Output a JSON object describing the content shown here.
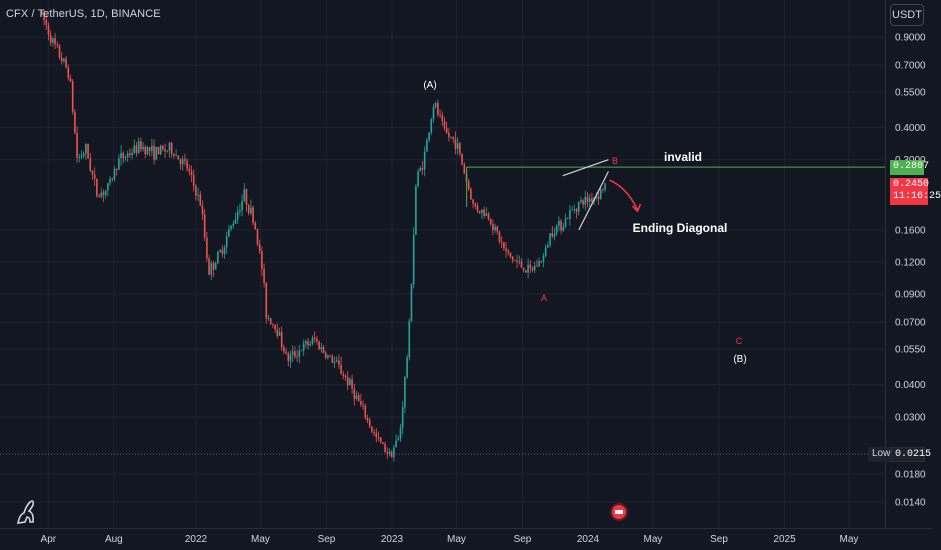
{
  "header": {
    "symbol_line": "CFX / TetherUS, 1D, BINANCE"
  },
  "unit_button_label": "USDT",
  "price_tags": {
    "invalid_level": "0.2807",
    "last_price": "0.2450",
    "countdown": "11:16:25",
    "low_label": "Low",
    "low_value": "0.0215"
  },
  "annotations": {
    "wave_A_top": "(A)",
    "wave_B_small": "B",
    "wave_A_small": "A",
    "wave_C_small": "C",
    "wave_B_target": "(B)",
    "invalid_text": "invalid",
    "ending_diagonal": "Ending Diagonal"
  },
  "colors": {
    "background": "#131722",
    "up": "#26a69a",
    "down": "#ef5350",
    "invalid_line": "#4caf50",
    "wave_red": "#f23645",
    "text": "#d1d4dc"
  },
  "chart_data": {
    "type": "candlestick",
    "scale": "log",
    "y_ticks": [
      0.9,
      0.7,
      0.55,
      0.4,
      0.3,
      0.16,
      0.12,
      0.09,
      0.07,
      0.055,
      0.04,
      0.03,
      0.018,
      0.014
    ],
    "y_tick_labels": [
      "0.9000",
      "0.7000",
      "0.5500",
      "0.4000",
      "0.3000",
      "0.1600",
      "0.1200",
      "0.0900",
      "0.0700",
      "0.0550",
      "0.0400",
      "0.0300",
      "0.0180",
      "0.0140"
    ],
    "x_ticks": [
      "Apr",
      "Aug",
      "2022",
      "May",
      "Sep",
      "2023",
      "May",
      "Sep",
      "2024",
      "May",
      "Sep",
      "2025",
      "May"
    ],
    "x_tick_dates": [
      "2021-04-01",
      "2021-08-01",
      "2022-01-01",
      "2022-05-01",
      "2022-09-01",
      "2023-01-01",
      "2023-05-01",
      "2023-09-01",
      "2024-01-01",
      "2024-05-01",
      "2024-09-01",
      "2025-01-01",
      "2025-05-01"
    ],
    "price_path": [
      [
        "2021-03-20",
        1.1
      ],
      [
        "2021-04-10",
        0.85
      ],
      [
        "2021-05-10",
        0.65
      ],
      [
        "2021-05-25",
        0.3
      ],
      [
        "2021-06-10",
        0.33
      ],
      [
        "2021-07-01",
        0.22
      ],
      [
        "2021-07-20",
        0.23
      ],
      [
        "2021-08-10",
        0.3
      ],
      [
        "2021-09-01",
        0.32
      ],
      [
        "2021-09-20",
        0.34
      ],
      [
        "2021-10-15",
        0.32
      ],
      [
        "2021-11-15",
        0.33
      ],
      [
        "2021-12-15",
        0.28
      ],
      [
        "2022-01-10",
        0.2
      ],
      [
        "2022-01-25",
        0.11
      ],
      [
        "2022-02-15",
        0.13
      ],
      [
        "2022-03-10",
        0.17
      ],
      [
        "2022-04-01",
        0.22
      ],
      [
        "2022-04-20",
        0.17
      ],
      [
        "2022-05-05",
        0.11
      ],
      [
        "2022-05-12",
        0.075
      ],
      [
        "2022-06-01",
        0.066
      ],
      [
        "2022-06-20",
        0.05
      ],
      [
        "2022-07-15",
        0.055
      ],
      [
        "2022-08-10",
        0.06
      ],
      [
        "2022-09-01",
        0.052
      ],
      [
        "2022-09-20",
        0.048
      ],
      [
        "2022-10-15",
        0.04
      ],
      [
        "2022-11-10",
        0.031
      ],
      [
        "2022-12-01",
        0.025
      ],
      [
        "2022-12-28",
        0.0215
      ],
      [
        "2023-01-15",
        0.025
      ],
      [
        "2023-02-01",
        0.06
      ],
      [
        "2023-02-15",
        0.25
      ],
      [
        "2023-03-01",
        0.3
      ],
      [
        "2023-03-20",
        0.5
      ],
      [
        "2023-04-10",
        0.38
      ],
      [
        "2023-05-01",
        0.35
      ],
      [
        "2023-06-01",
        0.2
      ],
      [
        "2023-07-01",
        0.18
      ],
      [
        "2023-08-01",
        0.13
      ],
      [
        "2023-08-20",
        0.12
      ],
      [
        "2023-09-15",
        0.11
      ],
      [
        "2023-10-10",
        0.125
      ],
      [
        "2023-10-25",
        0.16
      ],
      [
        "2023-11-15",
        0.17
      ],
      [
        "2023-12-10",
        0.2
      ],
      [
        "2024-01-01",
        0.21
      ],
      [
        "2024-01-20",
        0.22
      ],
      [
        "2024-02-05",
        0.245
      ]
    ],
    "invalid_level": 0.2807,
    "last_price": 0.245,
    "low": 0.0215
  }
}
